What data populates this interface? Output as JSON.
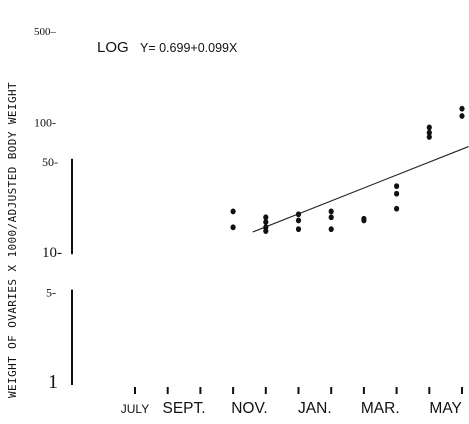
{
  "chart_data": {
    "type": "scatter",
    "title": "",
    "ylabel": "WEIGHT OF OVARIES X 1000/ADJUSTED BODY WEIGHT",
    "xlabel": "",
    "yscale": "log",
    "ylim": [
      1,
      500
    ],
    "y_ticks": [
      {
        "value": 500,
        "label": "500–"
      },
      {
        "value": 100,
        "label": "100-"
      },
      {
        "value": 50,
        "label": "50-"
      },
      {
        "value": 10,
        "label": "10-"
      },
      {
        "value": 5,
        "label": "5-"
      },
      {
        "value": 1,
        "label": "1"
      }
    ],
    "x_ticks_count": 11,
    "x_tick_labels": [
      {
        "text": "JULY",
        "at": 1
      },
      {
        "text": "SEPT.",
        "at": 2.5
      },
      {
        "text": "NOV.",
        "at": 4.5
      },
      {
        "text": "JAN.",
        "at": 6.5
      },
      {
        "text": "MAR.",
        "at": 8.5
      },
      {
        "text": "MAY",
        "at": 10.5
      }
    ],
    "equation": {
      "prefix": "LOG",
      "text": "Y= 0.699+0.099X"
    },
    "regression": {
      "intercept": 0.699,
      "slope": 0.099,
      "x_from": 4.6,
      "x_to": 11.2
    },
    "points": [
      {
        "x": 4,
        "y": 20.5
      },
      {
        "x": 4,
        "y": 15.5
      },
      {
        "x": 5,
        "y": 18.5
      },
      {
        "x": 5,
        "y": 17.0
      },
      {
        "x": 5,
        "y": 15.5
      },
      {
        "x": 5,
        "y": 14.5
      },
      {
        "x": 6,
        "y": 19.5
      },
      {
        "x": 6,
        "y": 17.5
      },
      {
        "x": 6,
        "y": 15.0
      },
      {
        "x": 7,
        "y": 20.5
      },
      {
        "x": 7,
        "y": 18.5
      },
      {
        "x": 7,
        "y": 15.0
      },
      {
        "x": 8,
        "y": 18.0
      },
      {
        "x": 8,
        "y": 17.5
      },
      {
        "x": 9,
        "y": 32
      },
      {
        "x": 9,
        "y": 28
      },
      {
        "x": 9,
        "y": 21.5
      },
      {
        "x": 10,
        "y": 90
      },
      {
        "x": 10,
        "y": 82
      },
      {
        "x": 10,
        "y": 76
      },
      {
        "x": 11,
        "y": 125
      },
      {
        "x": 11,
        "y": 110
      }
    ]
  }
}
